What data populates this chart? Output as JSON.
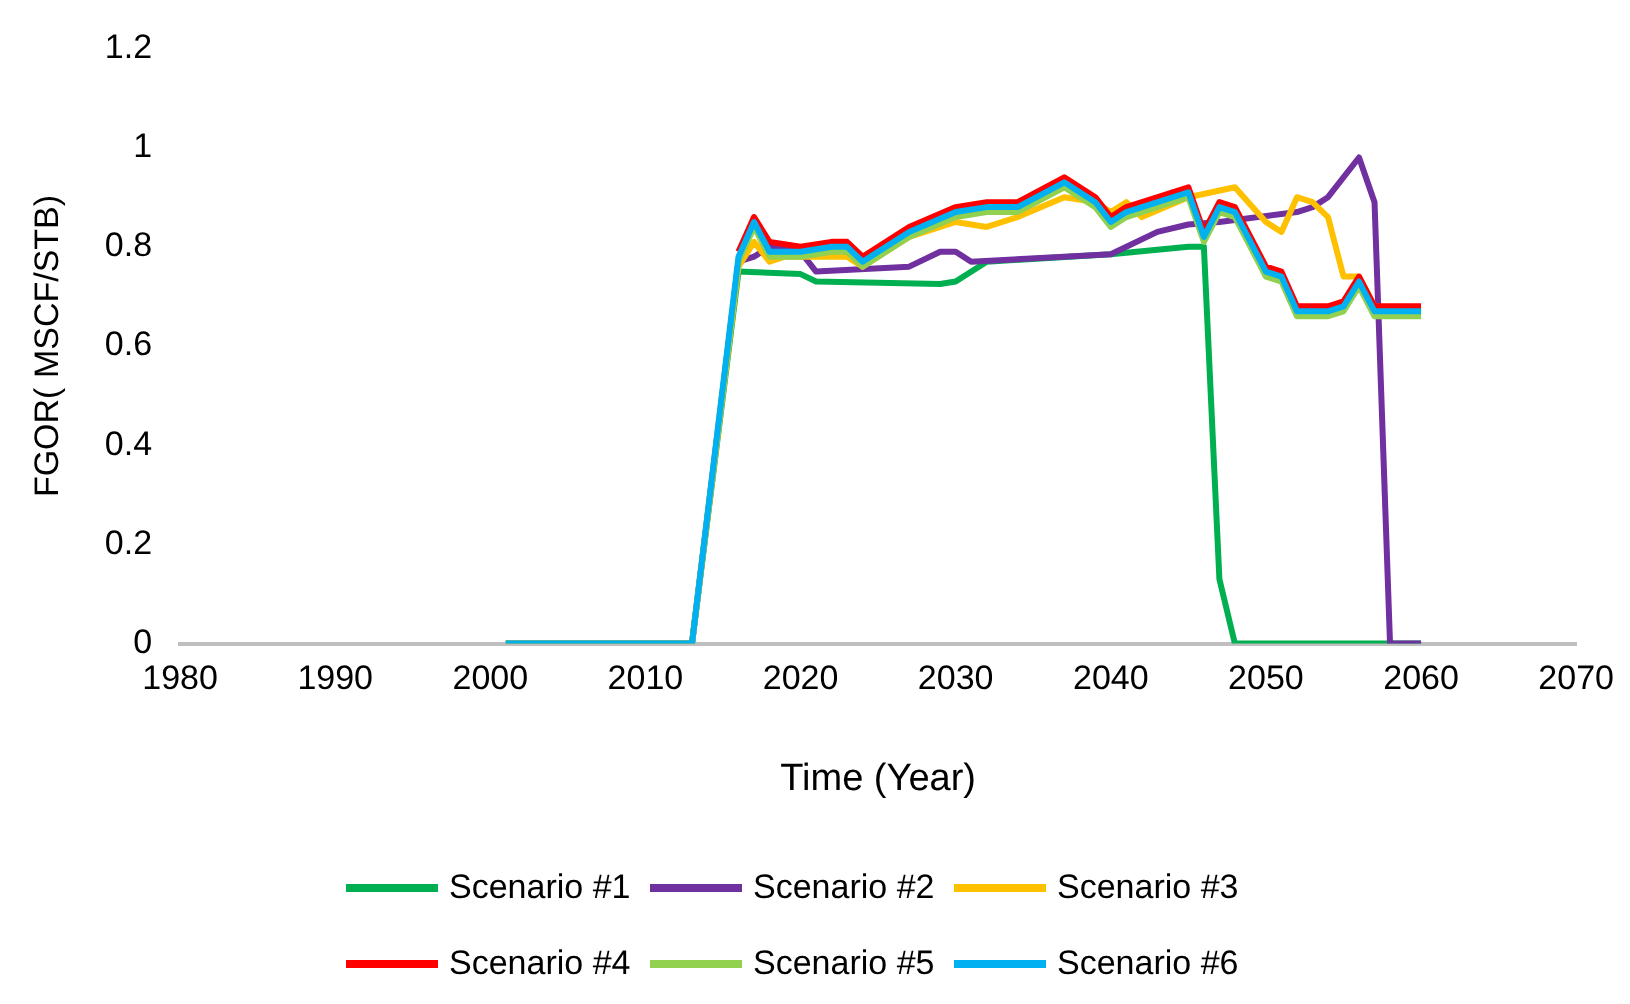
{
  "chart_data": {
    "type": "line",
    "xlabel": "Time (Year)",
    "ylabel": "FGOR( MSCF/STB)",
    "xlim": [
      1980,
      2070
    ],
    "xticks": [
      1980,
      1990,
      2000,
      2010,
      2020,
      2030,
      2040,
      2050,
      2060,
      2070
    ],
    "ylim": [
      0,
      1.2
    ],
    "yticks": [
      0,
      0.2,
      0.4,
      0.6,
      0.8,
      1,
      1.2
    ],
    "grid": false,
    "legend": "bottom",
    "marker": "none",
    "line_style": "solid",
    "series": [
      {
        "name": "Scenario #1",
        "color": "#00b050",
        "x": [
          2001,
          2013,
          2016,
          2020,
          2021,
          2029,
          2030,
          2032,
          2040,
          2045,
          2046,
          2047,
          2048,
          2060
        ],
        "values": [
          0,
          0,
          0.75,
          0.745,
          0.73,
          0.725,
          0.73,
          0.77,
          0.785,
          0.8,
          0.8,
          0.13,
          0,
          0
        ]
      },
      {
        "name": "Scenario #2",
        "color": "#7030a0",
        "x": [
          2001,
          2013,
          2016,
          2017,
          2018,
          2020,
          2021,
          2027,
          2029,
          2030,
          2031,
          2040,
          2043,
          2045,
          2047,
          2052,
          2053,
          2054,
          2056,
          2057,
          2058,
          2060
        ],
        "values": [
          0,
          0,
          0.77,
          0.78,
          0.8,
          0.79,
          0.75,
          0.76,
          0.79,
          0.79,
          0.77,
          0.785,
          0.83,
          0.845,
          0.85,
          0.87,
          0.88,
          0.9,
          0.98,
          0.89,
          0,
          0
        ]
      },
      {
        "name": "Scenario #3",
        "color": "#ffc000",
        "x": [
          2001,
          2013,
          2016,
          2017,
          2018,
          2019,
          2023,
          2024,
          2027,
          2030,
          2032,
          2034,
          2037,
          2039,
          2040,
          2041,
          2042,
          2045,
          2048,
          2050,
          2051,
          2052,
          2053,
          2054,
          2055,
          2056,
          2057,
          2060
        ],
        "values": [
          0,
          0,
          0.76,
          0.81,
          0.77,
          0.78,
          0.78,
          0.76,
          0.82,
          0.85,
          0.84,
          0.86,
          0.9,
          0.89,
          0.87,
          0.89,
          0.86,
          0.9,
          0.92,
          0.85,
          0.83,
          0.9,
          0.89,
          0.86,
          0.74,
          0.74,
          0.68,
          0.67
        ]
      },
      {
        "name": "Scenario #4",
        "color": "#ff0000",
        "x": [
          2016,
          2017,
          2018,
          2020,
          2022,
          2023,
          2024,
          2027,
          2030,
          2032,
          2034,
          2037,
          2039,
          2040,
          2041,
          2045,
          2046,
          2047,
          2048,
          2050,
          2051,
          2052,
          2054,
          2055,
          2056,
          2057,
          2060
        ],
        "values": [
          0.79,
          0.86,
          0.81,
          0.8,
          0.81,
          0.81,
          0.78,
          0.84,
          0.88,
          0.89,
          0.89,
          0.94,
          0.9,
          0.86,
          0.88,
          0.92,
          0.83,
          0.89,
          0.88,
          0.76,
          0.75,
          0.68,
          0.68,
          0.69,
          0.74,
          0.68,
          0.68
        ]
      },
      {
        "name": "Scenario #5",
        "color": "#92d050",
        "x": [
          2001,
          2013,
          2016,
          2017,
          2018,
          2020,
          2022,
          2023,
          2024,
          2027,
          2030,
          2032,
          2034,
          2037,
          2039,
          2040,
          2041,
          2045,
          2046,
          2047,
          2048,
          2050,
          2051,
          2052,
          2054,
          2055,
          2056,
          2057,
          2060
        ],
        "values": [
          0,
          0,
          0.77,
          0.84,
          0.78,
          0.78,
          0.79,
          0.79,
          0.76,
          0.82,
          0.86,
          0.87,
          0.87,
          0.92,
          0.88,
          0.84,
          0.86,
          0.9,
          0.81,
          0.87,
          0.86,
          0.74,
          0.73,
          0.66,
          0.66,
          0.67,
          0.72,
          0.66,
          0.66
        ]
      },
      {
        "name": "Scenario #6",
        "color": "#00b0f0",
        "x": [
          2001,
          2013,
          2016,
          2017,
          2018,
          2020,
          2022,
          2023,
          2024,
          2027,
          2030,
          2032,
          2034,
          2037,
          2039,
          2040,
          2041,
          2045,
          2046,
          2047,
          2048,
          2050,
          2051,
          2052,
          2054,
          2055,
          2056,
          2057,
          2060
        ],
        "values": [
          0,
          0,
          0.78,
          0.85,
          0.79,
          0.79,
          0.8,
          0.8,
          0.77,
          0.83,
          0.87,
          0.88,
          0.88,
          0.93,
          0.89,
          0.85,
          0.87,
          0.91,
          0.82,
          0.88,
          0.87,
          0.75,
          0.74,
          0.67,
          0.67,
          0.68,
          0.73,
          0.67,
          0.67
        ]
      }
    ]
  }
}
